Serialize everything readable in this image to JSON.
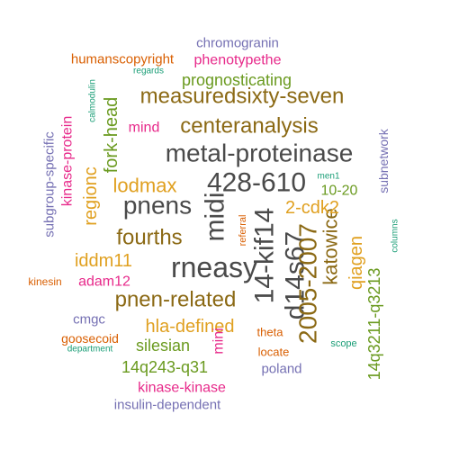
{
  "words": [
    {
      "text": "metal-proteinase",
      "color": "#4a4a4a"
    },
    {
      "text": "428-610",
      "color": "#4a4a4a"
    },
    {
      "text": "rneasy",
      "color": "#4a4a4a"
    },
    {
      "text": "14-kif14",
      "color": "#4a4a4a"
    },
    {
      "text": "midi",
      "color": "#4a4a4a"
    },
    {
      "text": "d14s67",
      "color": "#4a4a4a"
    },
    {
      "text": "pnens",
      "color": "#4a4a4a"
    },
    {
      "text": "2005-2007",
      "color": "#8b6914"
    },
    {
      "text": "measuredsixty-seven",
      "color": "#8b6914"
    },
    {
      "text": "centeranalysis",
      "color": "#8b6914"
    },
    {
      "text": "fourths",
      "color": "#8b6914"
    },
    {
      "text": "pnen-related",
      "color": "#8b6914"
    },
    {
      "text": "katowice",
      "color": "#8b6914"
    },
    {
      "text": "lodmax",
      "color": "#e0a020"
    },
    {
      "text": "hla-defined",
      "color": "#e0a020"
    },
    {
      "text": "iddm11",
      "color": "#e0a020"
    },
    {
      "text": "2-cdk2",
      "color": "#e0a020"
    },
    {
      "text": "regionc",
      "color": "#e0a020"
    },
    {
      "text": "qiagen",
      "color": "#e0a020"
    },
    {
      "text": "prognosticating",
      "color": "#6a9a1f"
    },
    {
      "text": "fork-head",
      "color": "#6a9a1f"
    },
    {
      "text": "silesian",
      "color": "#6a9a1f"
    },
    {
      "text": "14q243-q31",
      "color": "#6a9a1f"
    },
    {
      "text": "14q3211-q3213",
      "color": "#6a9a1f"
    },
    {
      "text": "10-20",
      "color": "#6a9a1f"
    },
    {
      "text": "phenotypethe",
      "color": "#e7298a"
    },
    {
      "text": "mind",
      "color": "#e7298a"
    },
    {
      "text": "kinase-protein",
      "color": "#e7298a"
    },
    {
      "text": "adam12",
      "color": "#e7298a"
    },
    {
      "text": "kinase-kinase",
      "color": "#e7298a"
    },
    {
      "text": "mini",
      "color": "#e7298a"
    },
    {
      "text": "chromogranin",
      "color": "#7570b3"
    },
    {
      "text": "subgroup-specific",
      "color": "#7570b3"
    },
    {
      "text": "cmgc",
      "color": "#7570b3"
    },
    {
      "text": "subnetwork",
      "color": "#7570b3"
    },
    {
      "text": "poland",
      "color": "#7570b3"
    },
    {
      "text": "insulin-dependent",
      "color": "#7570b3"
    },
    {
      "text": "humanscopyright",
      "color": "#d95f02"
    },
    {
      "text": "kinesin",
      "color": "#d95f02"
    },
    {
      "text": "goosecoid",
      "color": "#d95f02"
    },
    {
      "text": "referral",
      "color": "#d95f02"
    },
    {
      "text": "theta",
      "color": "#d95f02"
    },
    {
      "text": "locate",
      "color": "#d95f02"
    },
    {
      "text": "regards",
      "color": "#1b9e77"
    },
    {
      "text": "calmodulin",
      "color": "#1b9e77"
    },
    {
      "text": "men1",
      "color": "#1b9e77"
    },
    {
      "text": "columns",
      "color": "#1b9e77"
    },
    {
      "text": "department",
      "color": "#1b9e77"
    },
    {
      "text": "scope",
      "color": "#1b9e77"
    }
  ]
}
